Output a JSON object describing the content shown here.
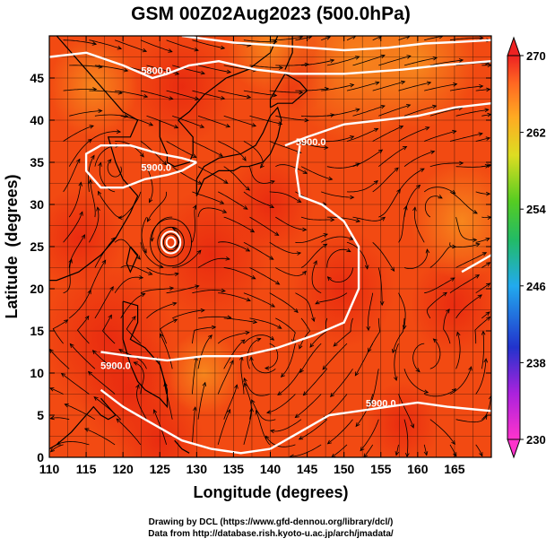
{
  "chart_data": {
    "type": "heatmap",
    "title": "GSM 00Z02Aug2023 (500.0hPa)",
    "xlabel": "Longitude (degrees)",
    "ylabel": "Latitude  (degrees)",
    "xlim": [
      110,
      170
    ],
    "ylim": [
      0,
      50
    ],
    "x_ticks": [
      "110",
      "115",
      "120",
      "125",
      "130",
      "135",
      "140",
      "145",
      "150",
      "155",
      "160",
      "165"
    ],
    "y_ticks": [
      "0",
      "5",
      "10",
      "15",
      "20",
      "25",
      "30",
      "35",
      "40",
      "45"
    ],
    "colorbar": {
      "ticks": [
        "230",
        "238",
        "246",
        "254",
        "262",
        "270"
      ],
      "min": 230,
      "max": 270
    },
    "contour_labels": [
      {
        "text": "5800.0",
        "lon": 124.5,
        "lat": 45.5
      },
      {
        "text": "5900.0",
        "lon": 124.5,
        "lat": 34.0
      },
      {
        "text": "5900.0",
        "lon": 145.5,
        "lat": 37.0
      },
      {
        "text": "5900.0",
        "lon": 119.0,
        "lat": 10.5
      },
      {
        "text": "5900.0",
        "lon": 155.0,
        "lat": 6.0
      }
    ],
    "colors": {
      "field_main": "#f24a12",
      "field_warm": "#ea2a10",
      "field_cool": "#f57b1c",
      "contour": "#ffffff",
      "stream": "#000000"
    }
  },
  "credits": {
    "line1": "Drawing by DCL (https://www.gfd-dennou.org/library/dcl/)",
    "line2": "Data from http://database.rish.kyoto-u.ac.jp/arch/jmadata/"
  }
}
